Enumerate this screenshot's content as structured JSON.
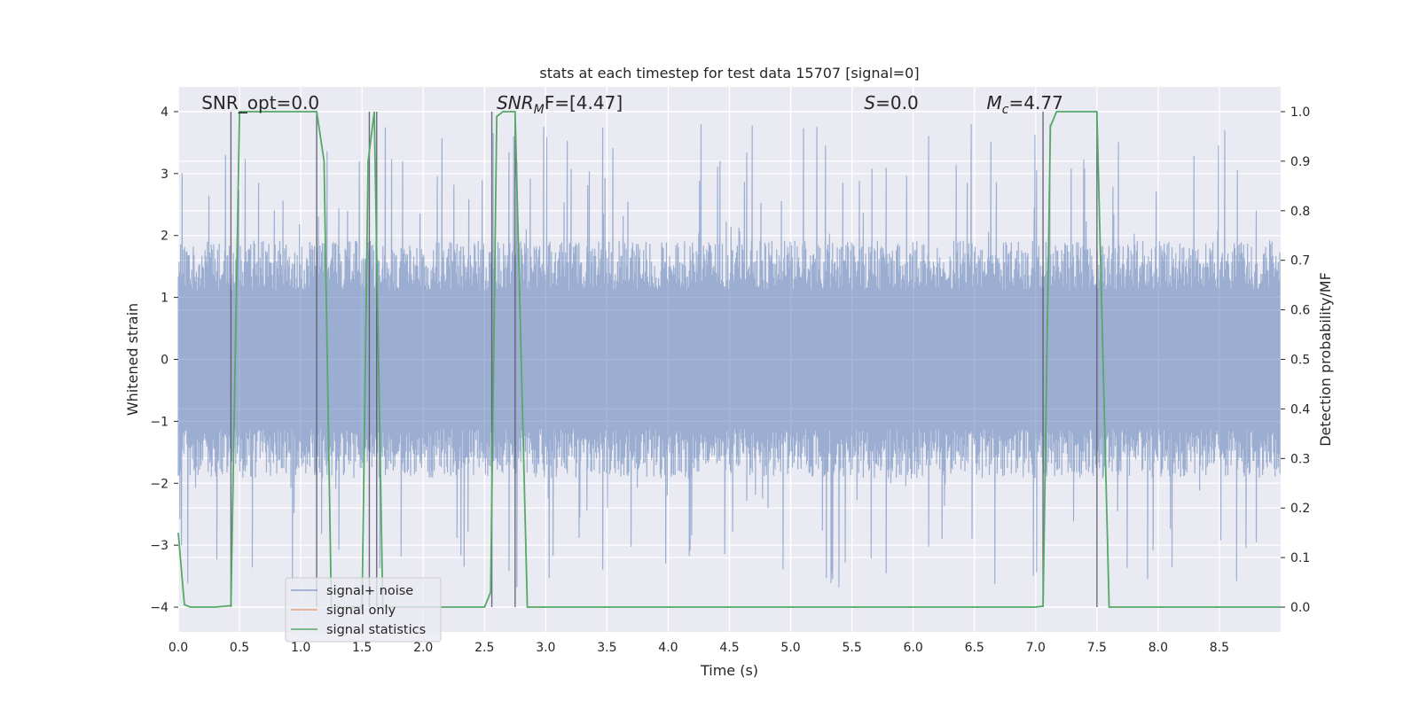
{
  "chart_data": {
    "type": "line",
    "title": "stats at each timestep for test data 15707 [signal=0]",
    "xlabel": "Time (s)",
    "ylabel": "Whitened strain",
    "y2label": "Detection probability/MF",
    "xlim": [
      0.0,
      9.0
    ],
    "ylim": [
      -4.4,
      4.4
    ],
    "y2lim": [
      -0.05,
      1.05
    ],
    "x_ticks": [
      0.0,
      0.5,
      1.0,
      1.5,
      2.0,
      2.5,
      3.0,
      3.5,
      4.0,
      4.5,
      5.0,
      5.5,
      6.0,
      6.5,
      7.0,
      7.5,
      8.0,
      8.5
    ],
    "x_tick_labels": [
      "0.0",
      "0.5",
      "1.0",
      "1.5",
      "2.0",
      "2.5",
      "3.0",
      "3.5",
      "4.0",
      "4.5",
      "5.0",
      "5.5",
      "6.0",
      "6.5",
      "7.0",
      "7.5",
      "8.0",
      "8.5"
    ],
    "y_ticks": [
      -4,
      -3,
      -2,
      -1,
      0,
      1,
      2,
      3,
      4
    ],
    "y_tick_labels": [
      "−4",
      "−3",
      "−2",
      "−1",
      "0",
      "1",
      "2",
      "3",
      "4"
    ],
    "y2_ticks": [
      0.0,
      0.1,
      0.2,
      0.3,
      0.4,
      0.5,
      0.6,
      0.7,
      0.8,
      0.9,
      1.0
    ],
    "y2_tick_labels": [
      "0.0",
      "0.1",
      "0.2",
      "0.3",
      "0.4",
      "0.5",
      "0.6",
      "0.7",
      "0.8",
      "0.9",
      "1.0"
    ],
    "grid": true,
    "legend_placement": "lower-left",
    "annotations": [
      {
        "text_main": "SNR_opt=0.0",
        "text_sub": "",
        "text_tail": "",
        "x": 0.19
      },
      {
        "text_main": "SNR",
        "text_sub": "M",
        "text_tail": "F=[4.47]",
        "x": 2.6
      },
      {
        "text_main": "S",
        "text_sub": "",
        "text_tail": "=0.0",
        "x": 5.6
      },
      {
        "text_main": "M",
        "text_sub": "c",
        "text_tail": "=4.77",
        "x": 6.6
      }
    ],
    "series": [
      {
        "name": "signal+ noise",
        "color": "#4c72b0",
        "kind": "noise",
        "envelope_typical": 1.6,
        "envelope_peak_max": 3.9,
        "envelope_peak_min": -4.0
      },
      {
        "name": "signal only",
        "color": "#dd8452",
        "kind": "flat",
        "values": []
      },
      {
        "name": "signal statistics",
        "color": "#55a868",
        "axis": "right",
        "x": [
          0.0,
          0.05,
          0.1,
          0.2,
          0.3,
          0.43,
          0.5,
          0.55,
          1.0,
          1.1,
          1.13,
          1.19,
          1.25,
          1.5,
          1.55,
          1.6,
          1.67,
          1.75,
          2.0,
          2.3,
          2.5,
          2.55,
          2.6,
          2.65,
          2.7,
          2.75,
          2.8,
          2.85,
          2.9,
          3.0,
          3.5,
          4.0,
          5.0,
          6.0,
          7.0,
          7.06,
          7.12,
          7.17,
          7.3,
          7.45,
          7.5,
          7.6,
          8.0,
          8.5,
          9.0
        ],
        "values": [
          0.15,
          0.005,
          0.0,
          0.0,
          0.0,
          0.003,
          1.0,
          1.0,
          1.0,
          1.0,
          1.0,
          0.9,
          0.0,
          0.0,
          0.9,
          1.0,
          0.0,
          0.0,
          0.0,
          0.0,
          0.0,
          0.03,
          0.99,
          1.0,
          1.0,
          1.0,
          0.5,
          0.0,
          0.0,
          0.0,
          0.0,
          0.0,
          0.0,
          0.0,
          0.0,
          0.002,
          0.97,
          1.0,
          1.0,
          1.0,
          1.0,
          0.0,
          0.0,
          0.0,
          0.0
        ]
      }
    ],
    "vertical_lines_x": [
      0.43,
      1.13,
      1.56,
      1.62,
      2.56,
      2.75,
      7.06,
      7.5
    ]
  }
}
